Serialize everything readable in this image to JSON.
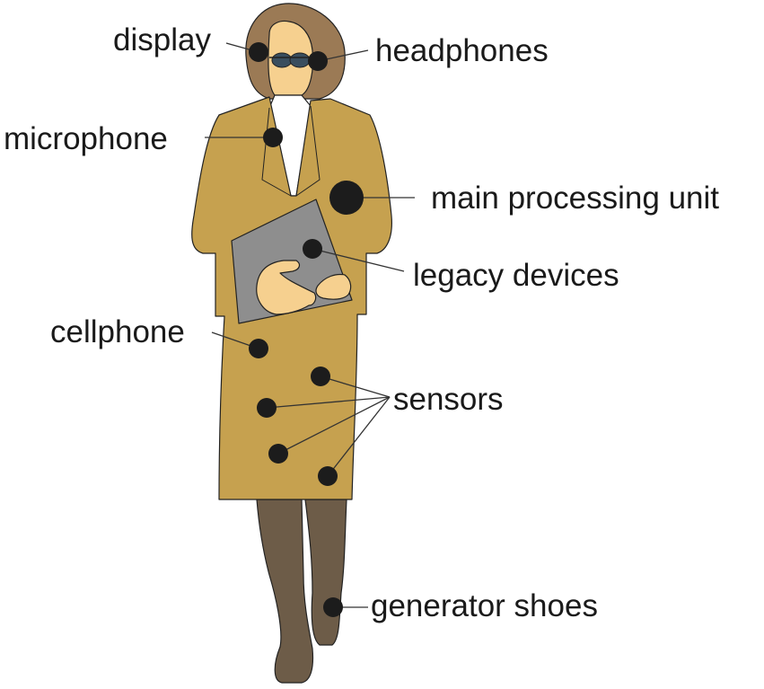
{
  "labels": {
    "display": "display",
    "headphones": "headphones",
    "microphone": "microphone",
    "main_processing_unit": "main processing unit",
    "legacy_devices": "legacy devices",
    "cellphone": "cellphone",
    "sensors": "sensors",
    "generator_shoes": "generator shoes"
  },
  "colors": {
    "coat": "#c6a14f",
    "hair": "#9b7a55",
    "skin": "#f6d08f",
    "boots": "#6d5c48",
    "device": "#8e8e8e",
    "dots": "#1c1c1c"
  }
}
